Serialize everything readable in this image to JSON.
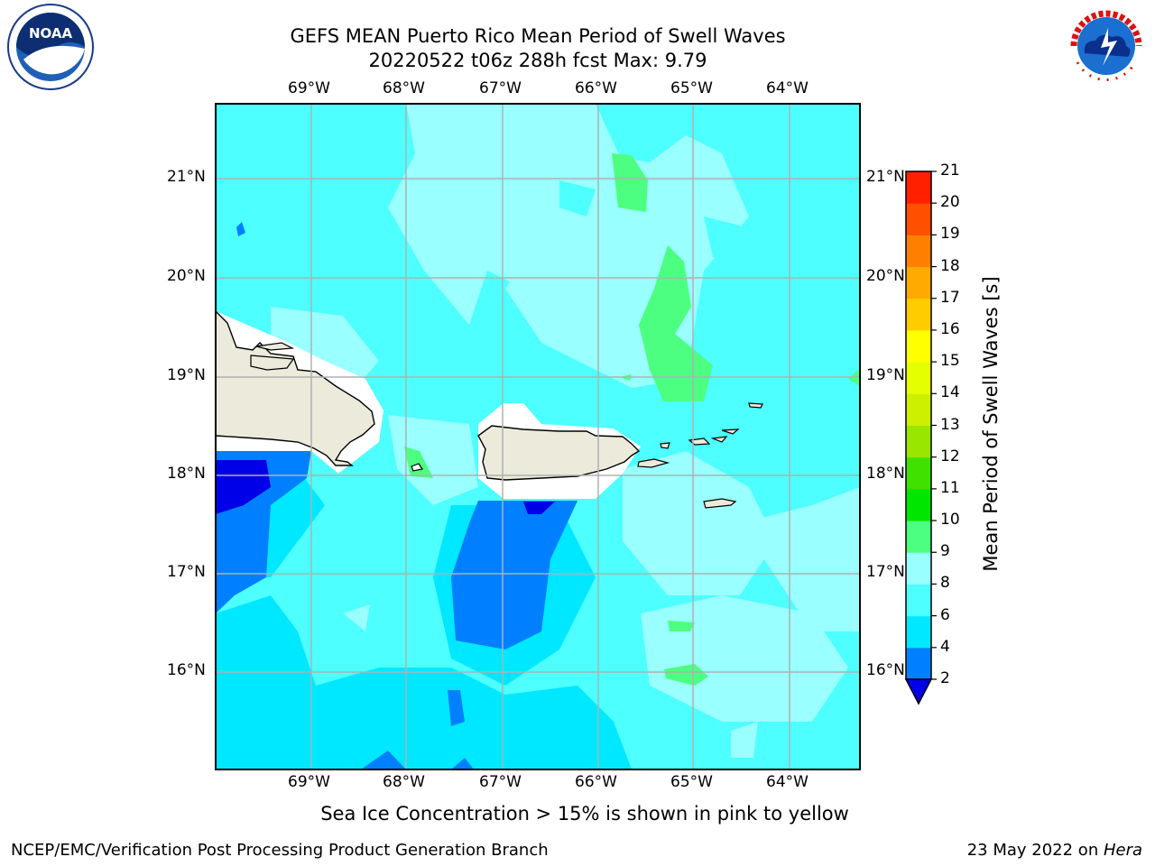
{
  "title_line1": "GEFS MEAN Puerto Rico Mean Period of Swell Waves",
  "title_line2": "20220522 t06z 288h fcst   Max: 9.79",
  "lon_labels": [
    "69°W",
    "68°W",
    "67°W",
    "66°W",
    "65°W",
    "64°W"
  ],
  "lat_labels": [
    "21°N",
    "20°N",
    "19°N",
    "18°N",
    "17°N",
    "16°N"
  ],
  "colorbar": {
    "label": "Mean Period of Swell Waves [s]",
    "ticks": [
      "2",
      "4",
      "6",
      "8",
      "9",
      "10",
      "11",
      "12",
      "13",
      "14",
      "15",
      "16",
      "17",
      "18",
      "19",
      "20",
      "21"
    ],
    "colors": [
      "#0000e8",
      "#0080ff",
      "#00e8ff",
      "#4dffff",
      "#99ffff",
      "#4dff80",
      "#00e600",
      "#40e000",
      "#99e600",
      "#ccf000",
      "#e6ff00",
      "#ffff00",
      "#ffcc00",
      "#ffaa00",
      "#ff8000",
      "#ff5000",
      "#ff2000",
      "#ff0000"
    ]
  },
  "sea_ice_note": "Sea Ice Concentration > 15% is shown in pink to yellow",
  "footer_left": "NCEP/EMC/Verification Post Processing Product Generation Branch",
  "footer_right_prefix": "23 May 2022 on ",
  "footer_right_machine": "Hera",
  "logos": {
    "noaa_text": "NOAA",
    "nws_text": "NATIONAL WEATHER SERVICE"
  }
}
